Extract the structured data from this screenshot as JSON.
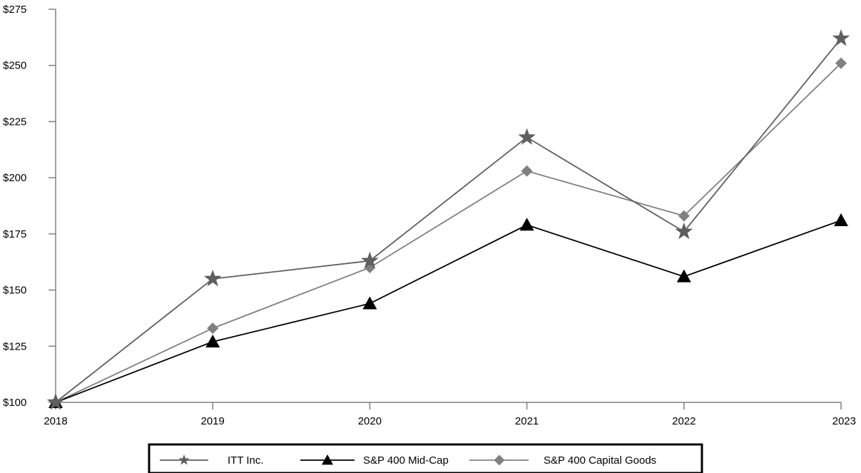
{
  "chart_data": {
    "type": "line",
    "title": "",
    "xlabel": "",
    "ylabel": "",
    "categories": [
      "2018",
      "2019",
      "2020",
      "2021",
      "2022",
      "2023"
    ],
    "ylim": [
      100,
      275
    ],
    "yticks": [
      100,
      125,
      150,
      175,
      200,
      225,
      250,
      275
    ],
    "ytick_labels": [
      "$100",
      "$125",
      "$150",
      "$175",
      "$200",
      "$225",
      "$250",
      "$275"
    ],
    "grid": false,
    "legend_position": "bottom-center",
    "series": [
      {
        "name": "ITT Inc.",
        "marker": "star",
        "color": "#5f5f5f",
        "values": [
          100,
          155,
          163,
          218,
          176,
          262
        ]
      },
      {
        "name": "S&P 400 Mid-Cap",
        "marker": "triangle",
        "color": "#000000",
        "values": [
          100,
          127,
          144,
          179,
          156,
          181
        ]
      },
      {
        "name": "S&P 400 Capital Goods",
        "marker": "diamond",
        "color": "#808080",
        "values": [
          100,
          133,
          160,
          203,
          183,
          251
        ]
      }
    ]
  }
}
